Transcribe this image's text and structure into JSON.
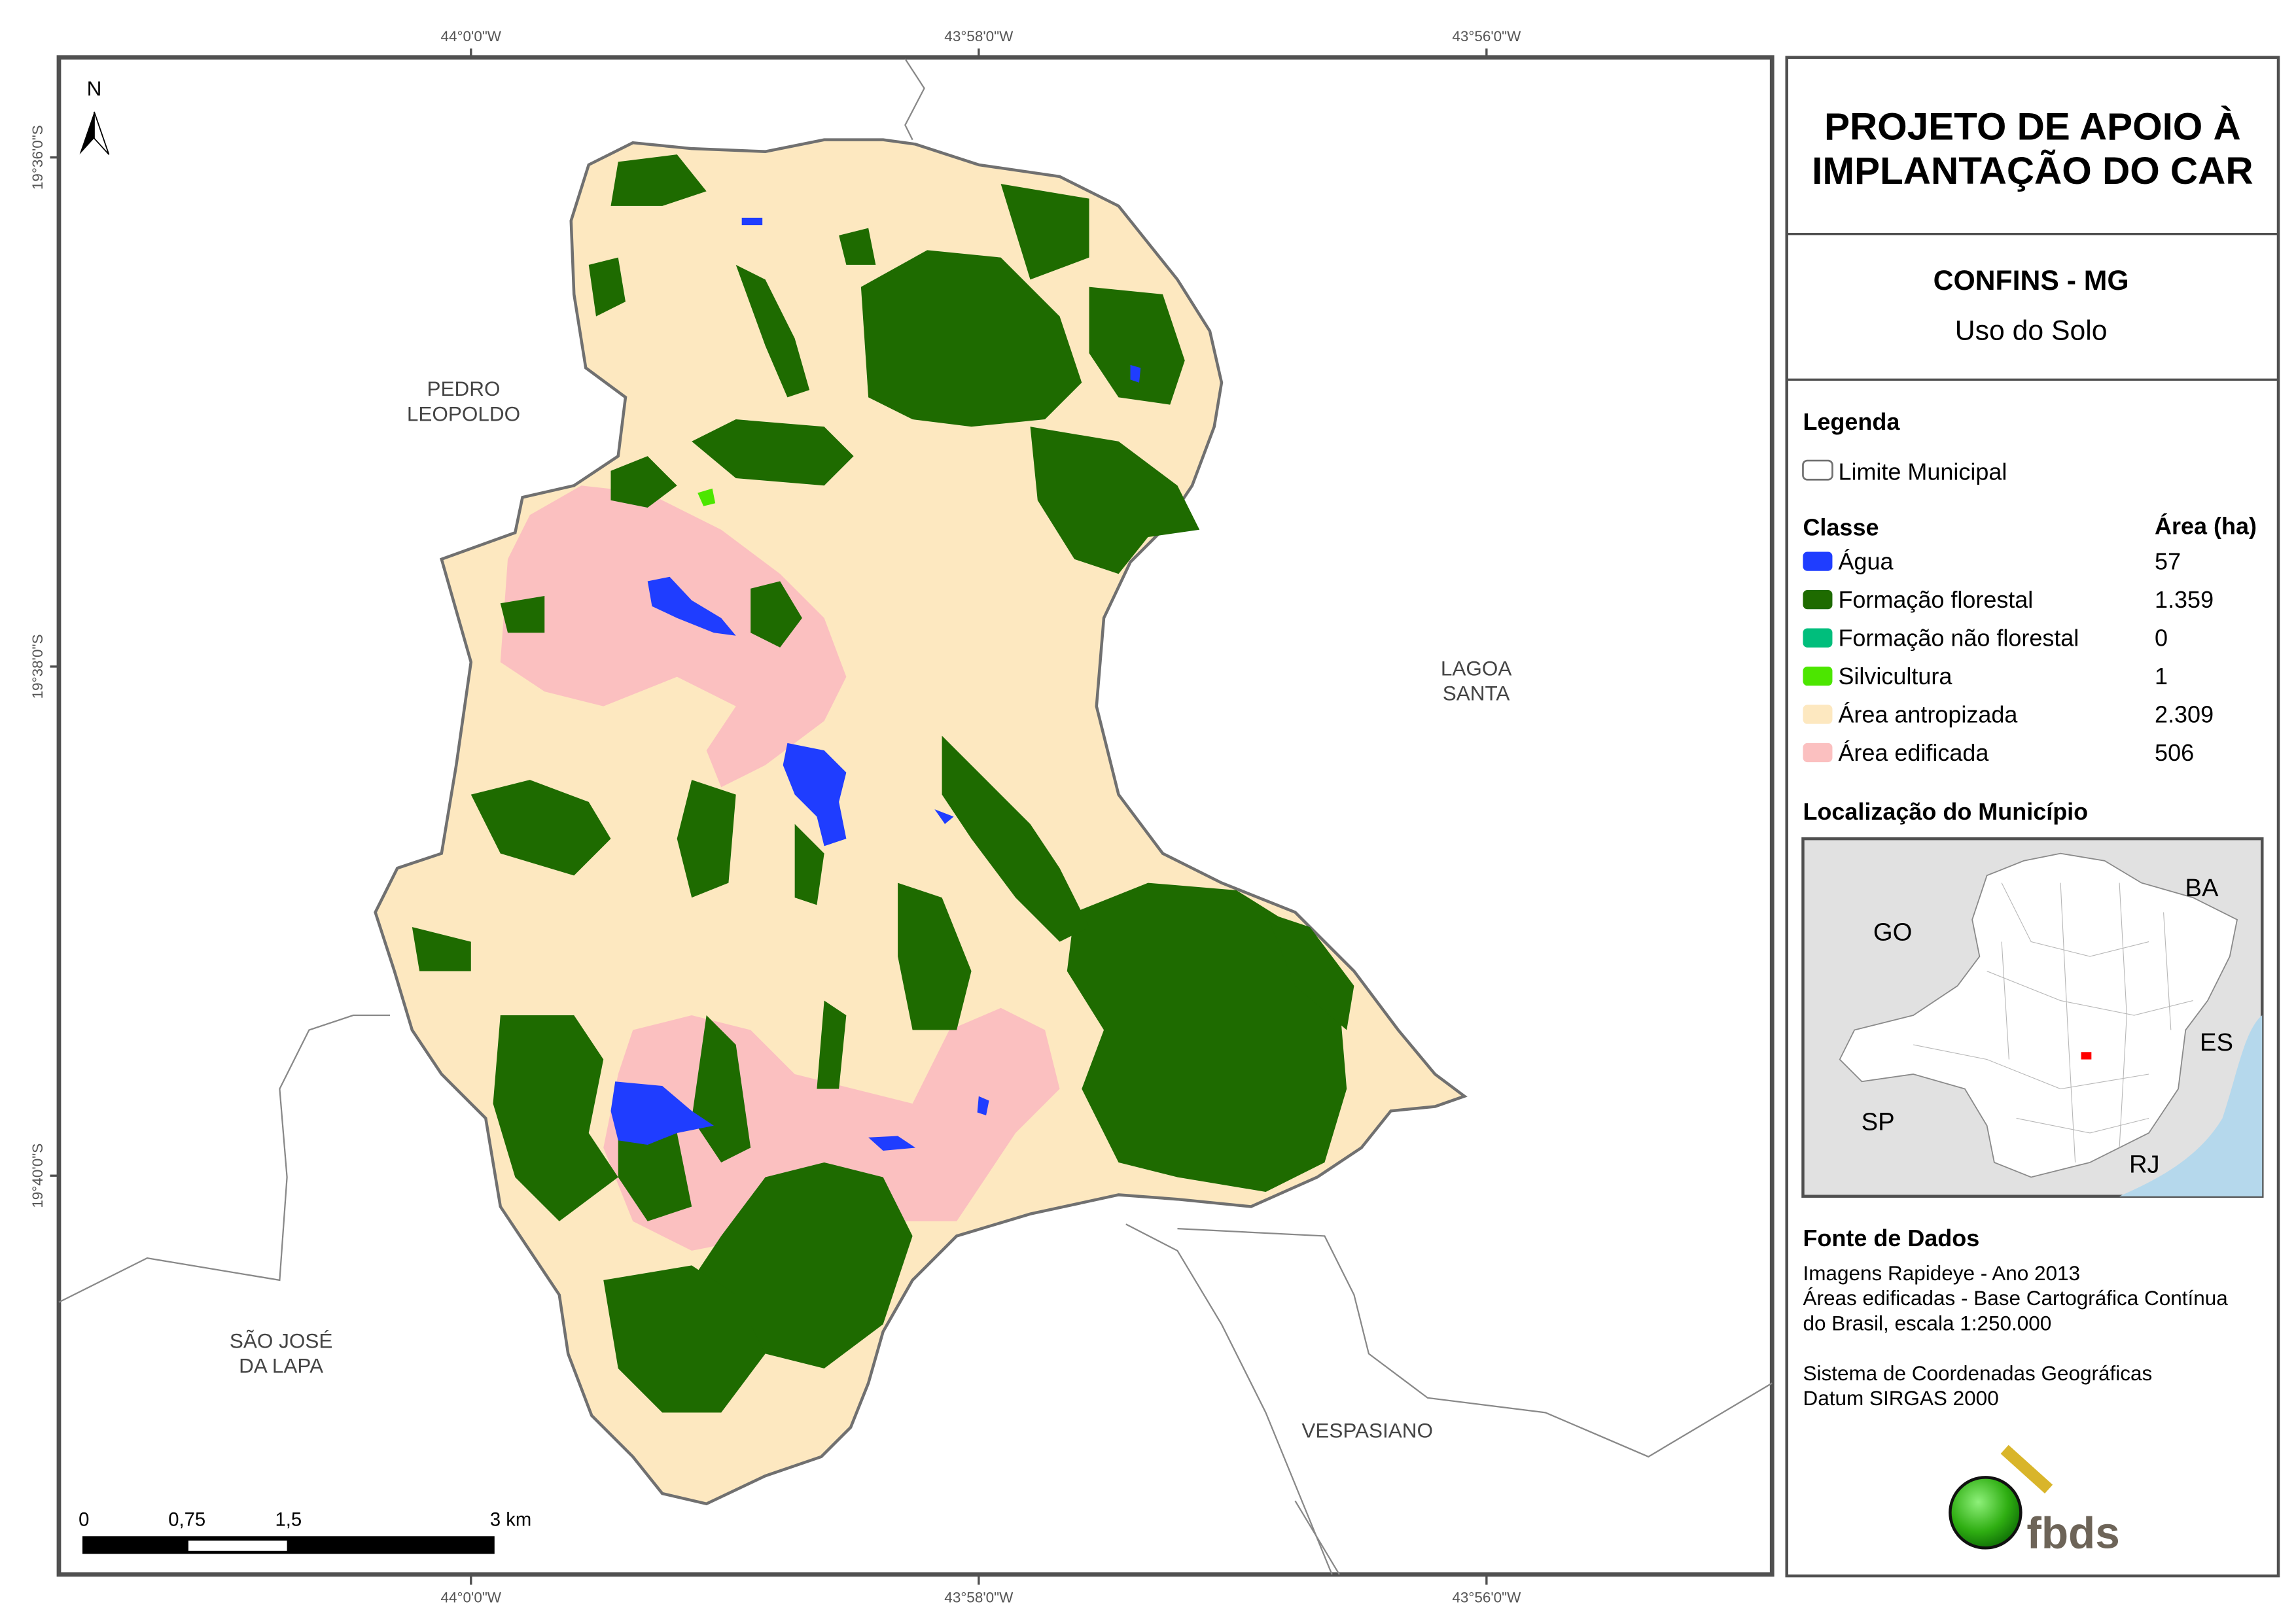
{
  "title": {
    "line1": "PROJETO DE APOIO À",
    "line2": "IMPLANTAÇÃO DO CAR"
  },
  "municipality": "CONFINS - MG",
  "subtitle": "Uso do Solo",
  "legend": {
    "heading": "Legenda",
    "boundary_label": "Limite Municipal",
    "class_header": "Classe",
    "area_header": "Área (ha)",
    "classes": [
      {
        "label": "Água",
        "area": "57",
        "color": "#1f3dff"
      },
      {
        "label": "Formação florestal",
        "area": "1.359",
        "color": "#1e6b00"
      },
      {
        "label": "Formação não florestal",
        "area": "0",
        "color": "#00be7c"
      },
      {
        "label": "Silvicultura",
        "area": "1",
        "color": "#4ce600"
      },
      {
        "label": "Área antropizada",
        "area": "2.309",
        "color": "#fde8c0"
      },
      {
        "label": "Área edificada",
        "area": "506",
        "color": "#fbc0c0"
      }
    ]
  },
  "location": {
    "heading": "Localização do Município",
    "states": [
      "BA",
      "GO",
      "ES",
      "SP",
      "RJ"
    ]
  },
  "sources": {
    "heading": "Fonte de Dados",
    "lines": [
      "Imagens Rapideye - Ano 2013",
      "Áreas edificadas - Base Cartográfica Contínua",
      "do Brasil, escala 1:250.000",
      "Sistema de Coordenadas Geográficas",
      "Datum SIRGAS 2000"
    ]
  },
  "logo": "fbds",
  "map": {
    "north_label": "N",
    "top_coords": [
      "44°0'0\"W",
      "43°58'0\"W",
      "43°56'0\"W"
    ],
    "bottom_coords": [
      "44°0'0\"W",
      "43°58'0\"W",
      "43°56'0\"W"
    ],
    "left_coords": [
      "19°36'0\"S",
      "19°38'0\"S",
      "19°40'0\"S"
    ],
    "neighbors": [
      {
        "line1": "PEDRO",
        "line2": "LEOPOLDO"
      },
      {
        "line1": "LAGOA",
        "line2": "SANTA"
      },
      {
        "line1": "SÃO JOSÉ",
        "line2": "DA LAPA"
      },
      {
        "line1": "VESPASIANO",
        "line2": ""
      }
    ],
    "scale_labels": [
      "0",
      "0,75",
      "1,5",
      "3 km"
    ]
  }
}
